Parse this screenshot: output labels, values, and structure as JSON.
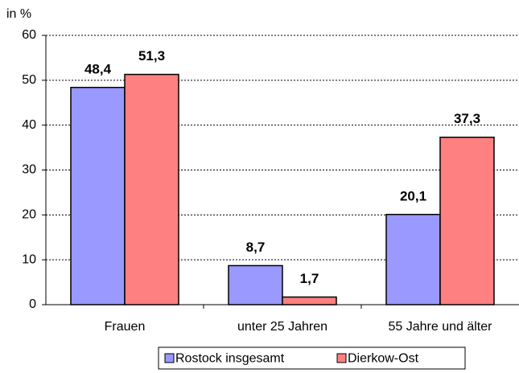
{
  "chart_data": {
    "type": "bar",
    "y_label": "in %",
    "categories": [
      "Frauen",
      "unter 25 Jahren",
      "55 Jahre und älter"
    ],
    "series": [
      {
        "name": "Rostock insgesamt",
        "color": "#9999ff",
        "values": [
          48.4,
          8.7,
          20.1
        ],
        "value_labels": [
          "48,4",
          "8,7",
          "20,1"
        ]
      },
      {
        "name": "Dierkow-Ost",
        "color": "#ff8080",
        "values": [
          51.3,
          1.7,
          37.3
        ],
        "value_labels": [
          "51,3",
          "1,7",
          "37,3"
        ]
      }
    ],
    "ylim": [
      0,
      60
    ],
    "yticks": [
      0,
      10,
      20,
      30,
      40,
      50,
      60
    ],
    "grid": true,
    "legend": "bottom"
  }
}
